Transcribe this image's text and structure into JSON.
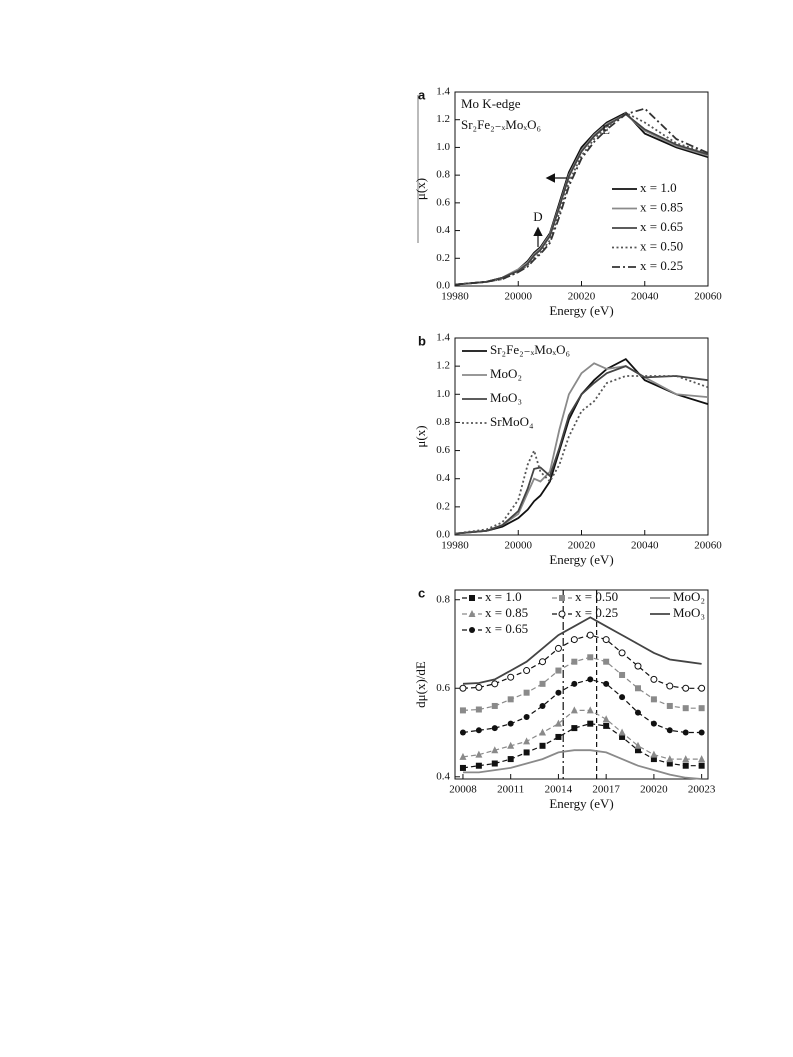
{
  "chart_data": [
    {
      "type": "line",
      "panel_label": "a",
      "xlabel": "Energy (eV)",
      "ylabel": "μ(x)",
      "annotations": [
        "Mo K-edge",
        "Sr₂Fe₂₋ₓMoₓO₆",
        "E",
        "D"
      ],
      "x": [
        19980,
        19990,
        19995,
        20000,
        20003,
        20005,
        20007,
        20010,
        20013,
        20016,
        20020,
        20024,
        20028,
        20034,
        20040,
        20050,
        20060
      ],
      "xlim": [
        19980,
        20060
      ],
      "xticks": [
        19980,
        20000,
        20020,
        20040,
        20060
      ],
      "ylim": [
        0,
        1.4
      ],
      "yticks": [
        {
          "value": 0,
          "label": "0.0"
        },
        0.2,
        0.4,
        0.6,
        0.8,
        {
          "value": 1,
          "label": "1.0"
        },
        1.2,
        1.4
      ],
      "legend": "lower right",
      "series": [
        {
          "name": "x = 1.0",
          "color": "#111111",
          "dash": "solid",
          "values": [
            0.01,
            0.03,
            0.06,
            0.12,
            0.18,
            0.24,
            0.28,
            0.38,
            0.6,
            0.82,
            1.0,
            1.1,
            1.18,
            1.25,
            1.1,
            1.0,
            0.93
          ]
        },
        {
          "name": "x = 0.85",
          "color": "#8a8a8a",
          "dash": "solid",
          "values": [
            0.01,
            0.03,
            0.06,
            0.12,
            0.17,
            0.23,
            0.27,
            0.37,
            0.58,
            0.8,
            0.98,
            1.09,
            1.17,
            1.24,
            1.12,
            1.01,
            0.94
          ]
        },
        {
          "name": "x = 0.65",
          "color": "#444444",
          "dash": "solid",
          "values": [
            0.01,
            0.03,
            0.06,
            0.11,
            0.16,
            0.22,
            0.26,
            0.36,
            0.57,
            0.79,
            0.97,
            1.08,
            1.16,
            1.24,
            1.13,
            1.02,
            0.95
          ]
        },
        {
          "name": "x = 0.50",
          "color": "#555555",
          "dash": "dotted",
          "values": [
            0.01,
            0.03,
            0.05,
            0.1,
            0.15,
            0.2,
            0.24,
            0.33,
            0.53,
            0.75,
            0.94,
            1.06,
            1.15,
            1.25,
            1.18,
            1.03,
            0.96
          ]
        },
        {
          "name": "x = 0.25",
          "color": "#333333",
          "dash": "dashdot",
          "values": [
            0.01,
            0.03,
            0.05,
            0.1,
            0.14,
            0.19,
            0.23,
            0.31,
            0.5,
            0.72,
            0.92,
            1.04,
            1.13,
            1.24,
            1.28,
            1.06,
            0.96
          ]
        }
      ]
    },
    {
      "type": "line",
      "panel_label": "b",
      "xlabel": "Energy (eV)",
      "ylabel": "μ(x)",
      "x": [
        19980,
        19990,
        19995,
        20000,
        20003,
        20005,
        20007,
        20010,
        20013,
        20016,
        20020,
        20024,
        20028,
        20034,
        20040,
        20050,
        20060
      ],
      "xlim": [
        19980,
        20060
      ],
      "xticks": [
        19980,
        20000,
        20020,
        20040,
        20060
      ],
      "ylim": [
        0,
        1.4
      ],
      "yticks": [
        {
          "value": 0,
          "label": "0.0"
        },
        0.2,
        0.4,
        0.6,
        0.8,
        {
          "value": 1,
          "label": "1.0"
        },
        1.2,
        1.4
      ],
      "legend": "upper left",
      "series": [
        {
          "name": "Sr₂Fe₂₋ₓMoₓO₆",
          "color": "#111111",
          "dash": "solid",
          "values": [
            0.01,
            0.03,
            0.06,
            0.12,
            0.18,
            0.24,
            0.28,
            0.38,
            0.6,
            0.82,
            1.0,
            1.1,
            1.18,
            1.25,
            1.1,
            1.0,
            0.93
          ]
        },
        {
          "name": "MoO₂",
          "color": "#8a8a8a",
          "dash": "solid",
          "values": [
            0.01,
            0.03,
            0.07,
            0.15,
            0.3,
            0.4,
            0.38,
            0.45,
            0.75,
            1.0,
            1.15,
            1.22,
            1.18,
            1.2,
            1.12,
            1.0,
            0.98
          ]
        },
        {
          "name": "MoO₃",
          "color": "#444444",
          "dash": "solid",
          "values": [
            0.01,
            0.03,
            0.07,
            0.17,
            0.33,
            0.47,
            0.48,
            0.42,
            0.62,
            0.85,
            1.0,
            1.08,
            1.15,
            1.2,
            1.12,
            1.13,
            1.1
          ]
        },
        {
          "name": "SrMoO₄",
          "color": "#555555",
          "dash": "dotted",
          "values": [
            0.01,
            0.04,
            0.09,
            0.25,
            0.5,
            0.6,
            0.45,
            0.38,
            0.5,
            0.7,
            0.88,
            0.95,
            1.08,
            1.13,
            1.13,
            1.13,
            1.05
          ]
        }
      ]
    },
    {
      "type": "line",
      "panel_label": "c",
      "xlabel": "Energy (eV)",
      "ylabel": "dμ(x)/dE",
      "x": [
        20008,
        20009,
        20010,
        20011,
        20012,
        20013,
        20014,
        20015,
        20016,
        20017,
        20018,
        20019,
        20020,
        20021,
        20022,
        20023
      ],
      "xlim": [
        20007.5,
        20023.4
      ],
      "xticks": [
        20008,
        20011,
        20014,
        20017,
        20020,
        20023
      ],
      "ylim": [
        0.395,
        0.822
      ],
      "yticks": [
        0.4,
        0.6,
        0.8
      ],
      "legend": "upper center",
      "vlines": [
        {
          "x": 20014.3,
          "dash": "dashdot"
        },
        {
          "x": 20016.4,
          "dash": "dash"
        }
      ],
      "series": [
        {
          "name": "x = 1.0",
          "color": "#111111",
          "dash": "dash",
          "marker": "square",
          "values": [
            0.42,
            0.425,
            0.43,
            0.44,
            0.455,
            0.47,
            0.49,
            0.51,
            0.52,
            0.515,
            0.49,
            0.46,
            0.44,
            0.43,
            0.425,
            0.425
          ]
        },
        {
          "name": "x = 0.85",
          "color": "#8a8a8a",
          "dash": "dash",
          "marker": "triangle",
          "values": [
            0.445,
            0.45,
            0.46,
            0.47,
            0.48,
            0.5,
            0.52,
            0.55,
            0.55,
            0.53,
            0.5,
            0.47,
            0.45,
            0.44,
            0.44,
            0.44
          ]
        },
        {
          "name": "x = 0.65",
          "color": "#111111",
          "dash": "dash",
          "marker": "circle",
          "values": [
            0.5,
            0.505,
            0.51,
            0.52,
            0.535,
            0.56,
            0.59,
            0.61,
            0.62,
            0.61,
            0.58,
            0.545,
            0.52,
            0.505,
            0.5,
            0.5
          ]
        },
        {
          "name": "x = 0.50",
          "color": "#8a8a8a",
          "dash": "dash",
          "marker": "square",
          "values": [
            0.55,
            0.552,
            0.56,
            0.575,
            0.59,
            0.61,
            0.64,
            0.66,
            0.67,
            0.66,
            0.63,
            0.6,
            0.575,
            0.56,
            0.555,
            0.555
          ]
        },
        {
          "name": "x = 0.25",
          "color": "#111111",
          "dash": "dash",
          "marker": "circle-open",
          "values": [
            0.6,
            0.602,
            0.61,
            0.625,
            0.64,
            0.66,
            0.69,
            0.71,
            0.72,
            0.71,
            0.68,
            0.65,
            0.62,
            0.605,
            0.6,
            0.6
          ]
        },
        {
          "name": "MoO₂",
          "color": "#8a8a8a",
          "dash": "solid",
          "values": [
            0.41,
            0.41,
            0.415,
            0.42,
            0.43,
            0.44,
            0.455,
            0.46,
            0.46,
            0.455,
            0.44,
            0.425,
            0.415,
            0.405,
            0.398,
            0.395
          ]
        },
        {
          "name": "MoO₃",
          "color": "#444444",
          "dash": "solid",
          "values": [
            0.61,
            0.612,
            0.62,
            0.64,
            0.66,
            0.69,
            0.72,
            0.74,
            0.76,
            0.74,
            0.72,
            0.7,
            0.68,
            0.665,
            0.66,
            0.655
          ]
        }
      ]
    }
  ]
}
